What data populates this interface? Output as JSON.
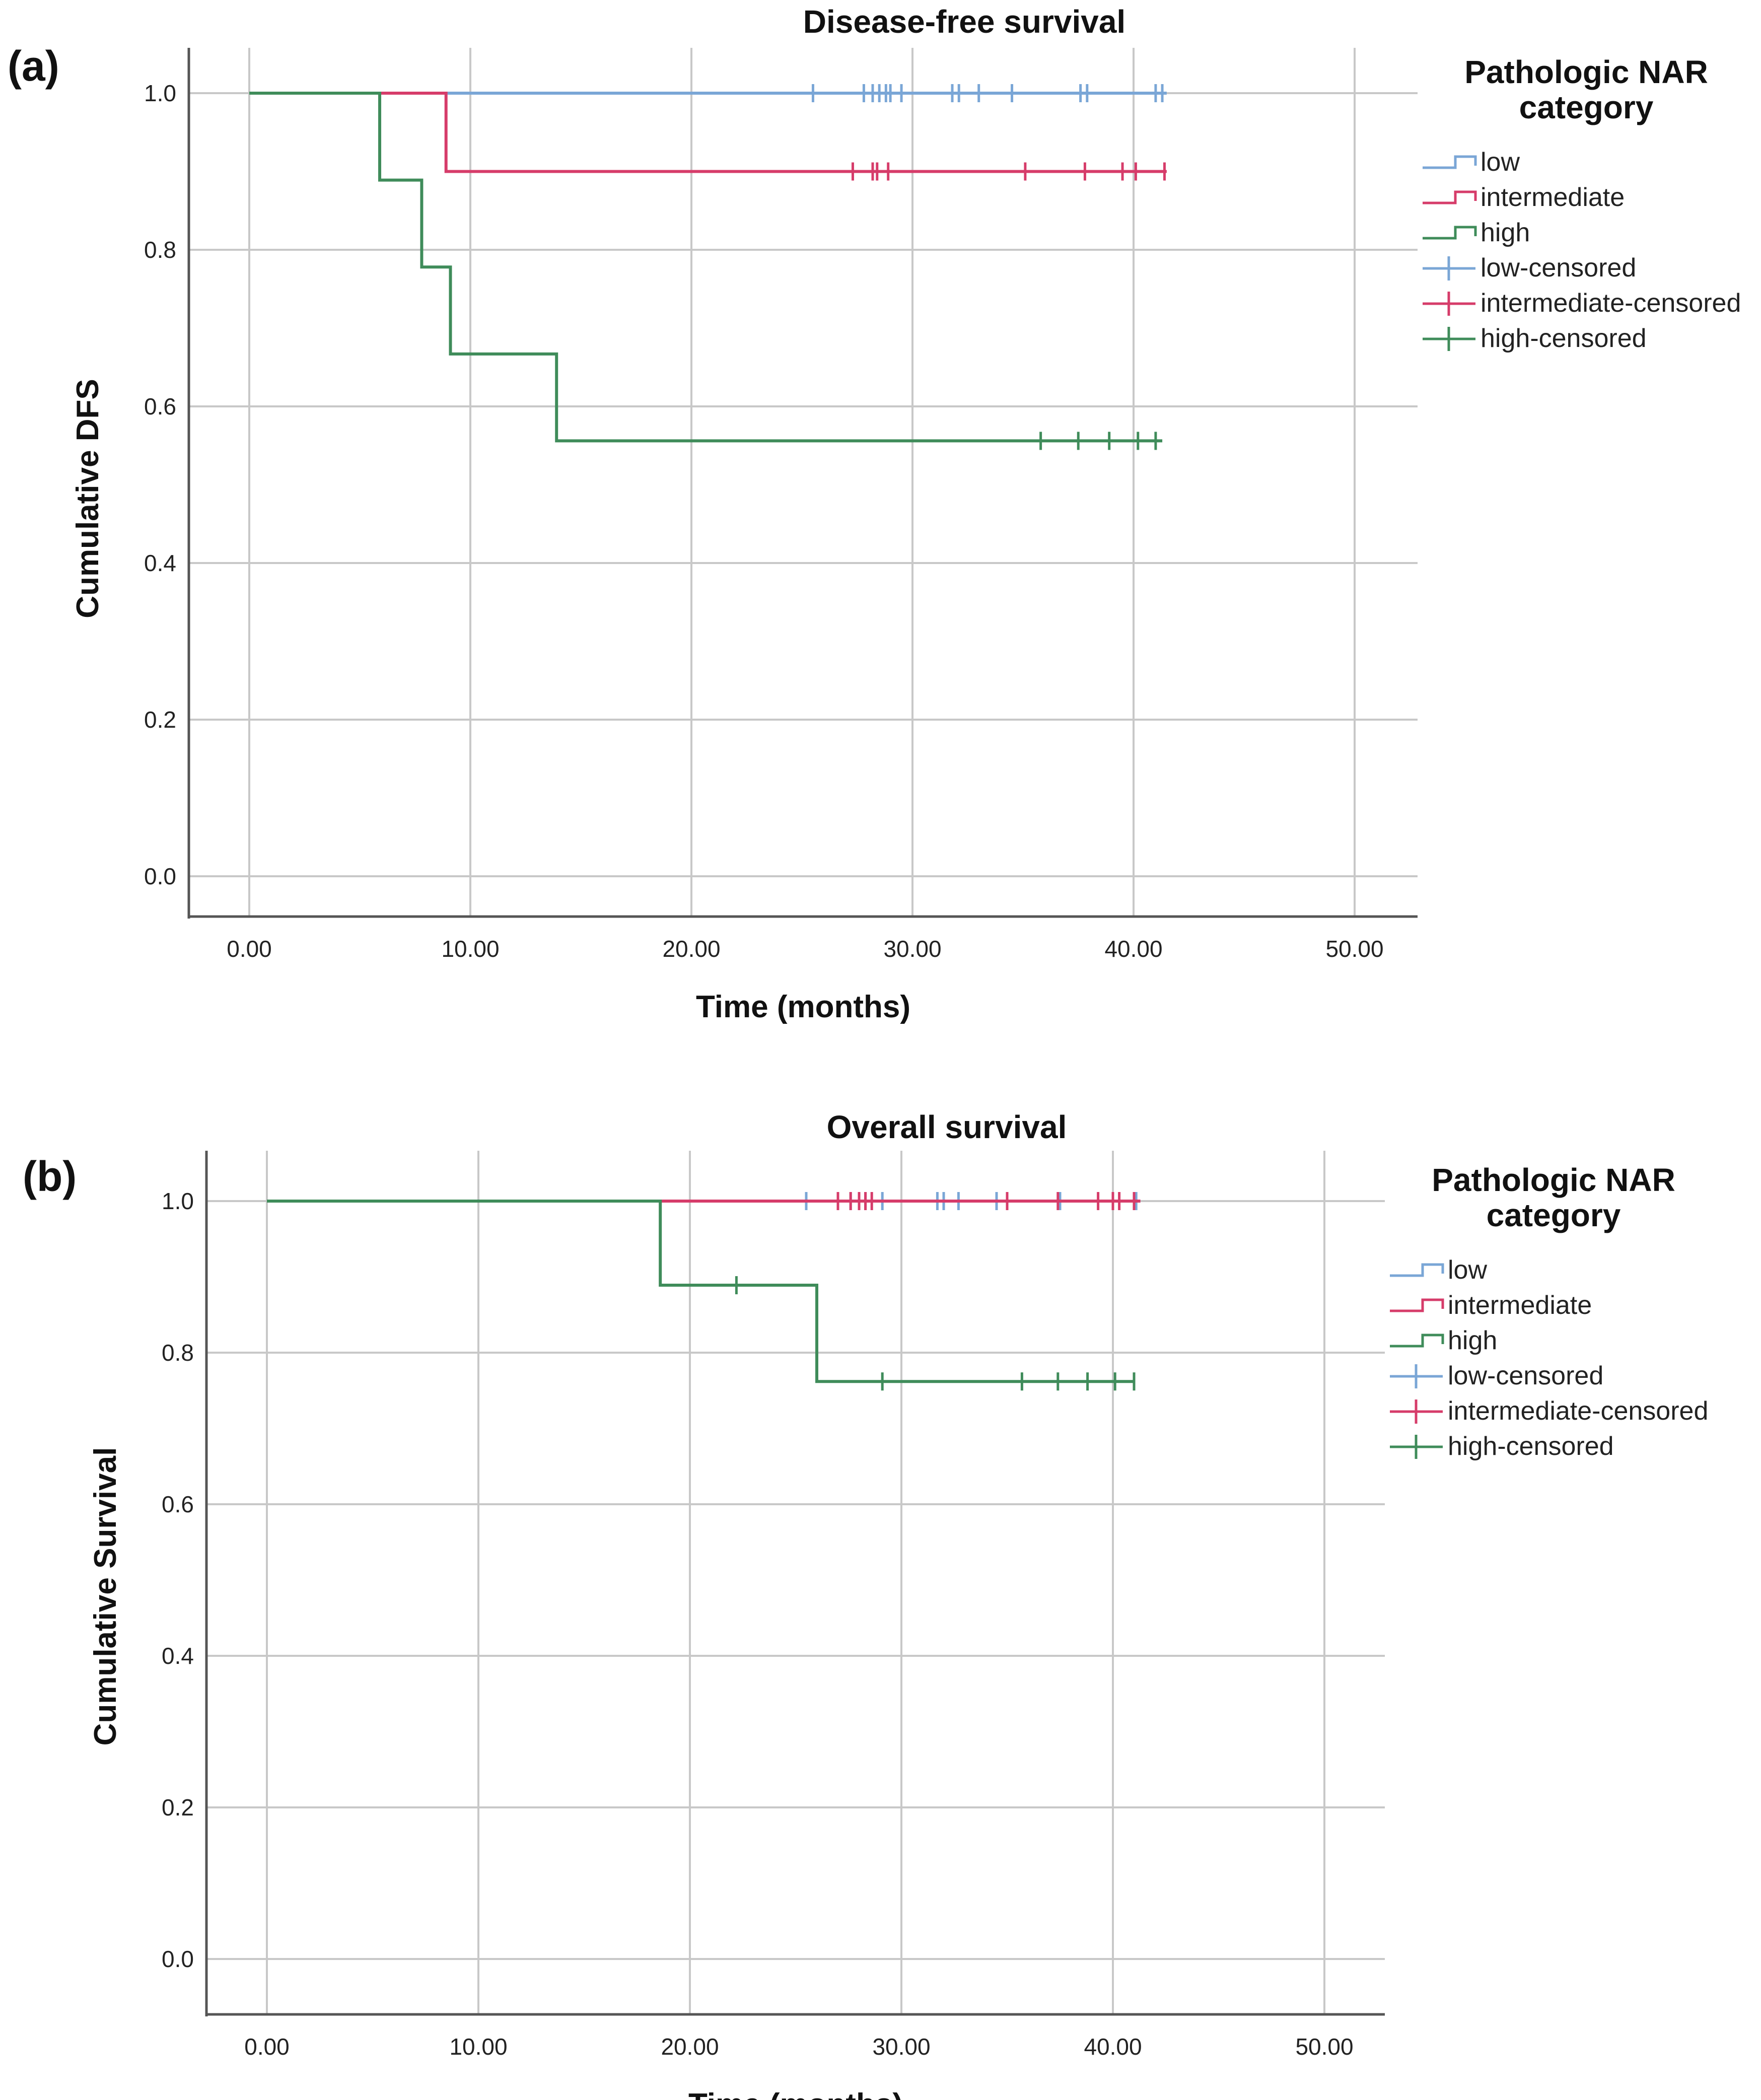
{
  "chart_data": [
    {
      "type": "line",
      "panel_label": "(a)",
      "title": "Disease-free survival",
      "xlabel": "Time (months)",
      "ylabel": "Cumulative DFS",
      "xlim": [
        0,
        50
      ],
      "ylim": [
        0,
        1.0
      ],
      "x_ticks": [
        "0.00",
        "10.00",
        "20.00",
        "30.00",
        "40.00",
        "50.00"
      ],
      "y_ticks": [
        "0.0",
        "0.2",
        "0.4",
        "0.6",
        "0.8",
        "1.0"
      ],
      "grid": true,
      "legend": {
        "title": "Pathologic NAR category",
        "title_lines": [
          "Pathologic NAR",
          "category"
        ],
        "placement": "right",
        "entries": [
          "low",
          "intermediate",
          "high",
          "low-censored",
          "intermediate-censored",
          "high-censored"
        ]
      },
      "colors": {
        "low": "#7aa6d6",
        "intermediate": "#d63c6a",
        "high": "#3f8c5a"
      },
      "series": [
        {
          "name": "low",
          "steps": [
            [
              0,
              1.0
            ],
            [
              41.5,
              1.0
            ]
          ],
          "censored": [
            25.5,
            27.8,
            28.2,
            28.5,
            28.8,
            29.0,
            29.5,
            31.8,
            32.1,
            33.0,
            34.5,
            37.6,
            37.9,
            41.0,
            41.3
          ]
        },
        {
          "name": "intermediate",
          "steps": [
            [
              0,
              1.0
            ],
            [
              8.9,
              1.0
            ],
            [
              8.9,
              0.9
            ],
            [
              41.5,
              0.9
            ]
          ],
          "censored": [
            27.3,
            28.2,
            28.4,
            28.9,
            35.1,
            37.8,
            39.5,
            40.1,
            41.4
          ]
        },
        {
          "name": "high",
          "steps": [
            [
              0,
              1.0
            ],
            [
              5.9,
              1.0
            ],
            [
              5.9,
              0.889
            ],
            [
              7.8,
              0.889
            ],
            [
              7.8,
              0.778
            ],
            [
              9.1,
              0.778
            ],
            [
              9.1,
              0.667
            ],
            [
              13.9,
              0.667
            ],
            [
              13.9,
              0.556
            ],
            [
              41.3,
              0.556
            ]
          ],
          "censored": [
            35.8,
            37.5,
            38.9,
            40.2,
            41.0
          ]
        }
      ]
    },
    {
      "type": "line",
      "panel_label": "(b)",
      "title": "Overall survival",
      "xlabel": "Time (months)",
      "ylabel": "Cumulative Survival",
      "xlim": [
        0,
        50
      ],
      "ylim": [
        0,
        1.0
      ],
      "x_ticks": [
        "0.00",
        "10.00",
        "20.00",
        "30.00",
        "40.00",
        "50.00"
      ],
      "y_ticks": [
        "0.0",
        "0.2",
        "0.4",
        "0.6",
        "0.8",
        "1.0"
      ],
      "grid": true,
      "legend": {
        "title": "Pathologic NAR category",
        "title_lines": [
          "Pathologic NAR",
          "category"
        ],
        "placement": "right",
        "entries": [
          "low",
          "intermediate",
          "high",
          "low-censored",
          "intermediate-censored",
          "high-censored"
        ]
      },
      "colors": {
        "low": "#7aa6d6",
        "intermediate": "#d63c6a",
        "high": "#3f8c5a"
      },
      "series": [
        {
          "name": "low",
          "steps": [
            [
              0,
              1.0
            ],
            [
              41.3,
              1.0
            ]
          ],
          "censored": [
            25.5,
            27.6,
            28.3,
            29.1,
            31.7,
            32.0,
            32.7,
            34.5,
            37.5,
            40.0,
            41.1
          ]
        },
        {
          "name": "intermediate",
          "steps": [
            [
              0,
              1.0
            ],
            [
              41.3,
              1.0
            ]
          ],
          "censored": [
            27.0,
            27.6,
            28.0,
            28.3,
            28.6,
            35.0,
            37.4,
            39.3,
            40.0,
            40.3,
            41.0
          ]
        },
        {
          "name": "high",
          "steps": [
            [
              0,
              1.0
            ],
            [
              18.6,
              1.0
            ],
            [
              18.6,
              0.889
            ],
            [
              26.0,
              0.889
            ],
            [
              26.0,
              0.762
            ],
            [
              41.0,
              0.762
            ]
          ],
          "censored": [
            22.2,
            29.1,
            35.7,
            37.4,
            38.8,
            40.1,
            41.0
          ]
        }
      ]
    }
  ]
}
